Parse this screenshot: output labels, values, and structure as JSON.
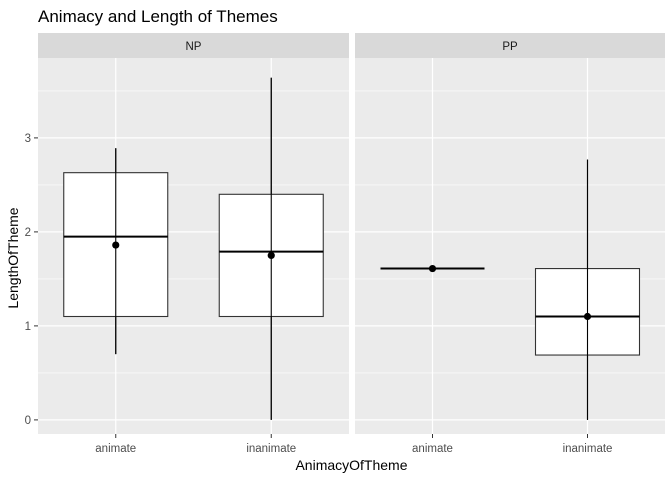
{
  "chart_data": {
    "type": "boxplot",
    "title": "Animacy and Length of Themes",
    "xlabel": "AnimacyOfTheme",
    "ylabel": "LengthOfTheme",
    "categories": [
      "animate",
      "inanimate"
    ],
    "ylim": [
      -0.15,
      3.85
    ],
    "yticks": [
      0,
      1,
      2,
      3
    ],
    "grid": true,
    "colors": {
      "panel_bg": "#ebebeb",
      "strip_bg": "#d9d9d9",
      "grid_major": "#ffffff",
      "box_fill": "#ffffff",
      "line": "#000000"
    },
    "facets": [
      {
        "name": "NP",
        "boxes": [
          {
            "category": "animate",
            "q1": 1.1,
            "median": 1.95,
            "q3": 2.63,
            "lo": 0.7,
            "hi": 2.89,
            "mean": 1.86
          },
          {
            "category": "inanimate",
            "q1": 1.1,
            "median": 1.79,
            "q3": 2.4,
            "lo": 0.0,
            "hi": 3.64,
            "mean": 1.75
          }
        ]
      },
      {
        "name": "PP",
        "boxes": [
          {
            "category": "animate",
            "q1": 1.61,
            "median": 1.61,
            "q3": 1.61,
            "lo": 1.61,
            "hi": 1.61,
            "mean": 1.61
          },
          {
            "category": "inanimate",
            "q1": 0.69,
            "median": 1.1,
            "q3": 1.61,
            "lo": 0.0,
            "hi": 2.77,
            "mean": 1.1
          }
        ]
      }
    ]
  }
}
